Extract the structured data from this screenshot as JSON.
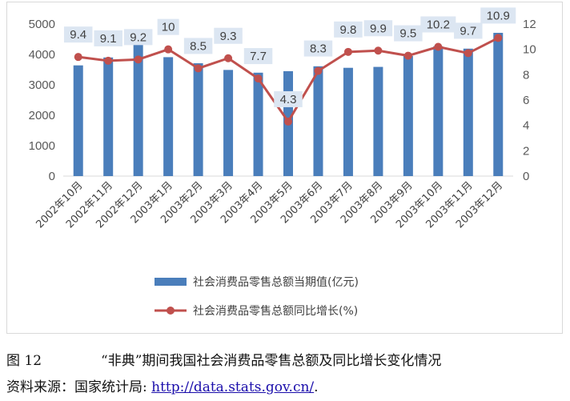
{
  "caption": {
    "label": "图 12",
    "text": "“非典”期间我国社会消费品零售总额及同比增长变化情况"
  },
  "source": {
    "prefix": "资料来源：国家统计局: ",
    "link": "http://data.stats.gov.cn/",
    "suffix": "."
  },
  "colors": {
    "bar": "#4a7ebb",
    "line": "#c0504d",
    "label_bg": "#dce6f2"
  },
  "chart_data": {
    "type": "bar",
    "categories": [
      "2002年10月",
      "2002年11月",
      "2002年12月",
      "2003年1月",
      "2003年2月",
      "2003年3月",
      "2003年4月",
      "2003年5月",
      "2003年6月",
      "2003年7月",
      "2003年8月",
      "2003年9月",
      "2003年10月",
      "2003年11月",
      "2003年12月"
    ],
    "series": [
      {
        "name": "社会消费品零售总额当期值(亿元)",
        "type": "bar",
        "axis": "left",
        "values": [
          3640,
          3900,
          4350,
          3910,
          3710,
          3490,
          3400,
          3450,
          3610,
          3560,
          3590,
          3950,
          4270,
          4190,
          4710
        ]
      },
      {
        "name": "社会消费品零售总额同比增长(%)",
        "type": "line",
        "axis": "right",
        "values": [
          9.4,
          9.1,
          9.2,
          10,
          8.5,
          9.3,
          7.7,
          4.3,
          8.3,
          9.8,
          9.9,
          9.5,
          10.2,
          9.7,
          10.9
        ],
        "labels": [
          "9.4",
          "9.1",
          "9.2",
          "10",
          "8.5",
          "9.3",
          "7.7",
          "4.3",
          "8.3",
          "9.8",
          "9.9",
          "9.5",
          "10.2",
          "9.7",
          "10.9"
        ]
      }
    ],
    "y_left": {
      "ticks": [
        "0",
        "1000",
        "2000",
        "3000",
        "4000",
        "5000"
      ],
      "range": [
        0,
        5000
      ]
    },
    "y_right": {
      "ticks": [
        "0",
        "2",
        "4",
        "6",
        "8",
        "10",
        "12"
      ],
      "range": [
        0,
        12
      ]
    },
    "legend": {
      "position": "bottom"
    },
    "grid": false
  }
}
